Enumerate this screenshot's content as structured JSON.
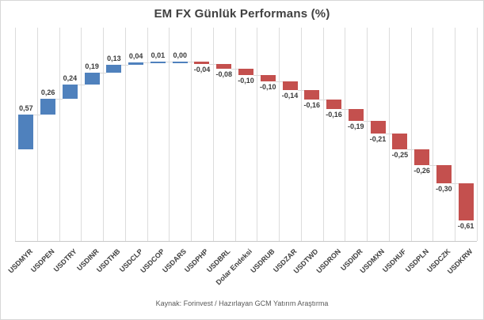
{
  "chart_data": {
    "type": "bar",
    "subtype": "waterfall",
    "title": "EM FX Günlük Performans (%)",
    "source_note": "Kaynak: Forinvest / Hazırlayan GCM Yatırım Araştırma",
    "categories": [
      "USDMYR",
      "USDPEN",
      "USDTRY",
      "USDINR",
      "USDTHB",
      "USDCLP",
      "USDCOP",
      "USDARS",
      "USDPHP",
      "USDBRL",
      "Dolar Endeksi",
      "USDRUB",
      "USDZAR",
      "USDTWD",
      "USDRON",
      "USDIDR",
      "USDMXN",
      "USDHUF",
      "USDPLN",
      "USDCZK",
      "USDKRW"
    ],
    "values": [
      0.57,
      0.26,
      0.24,
      0.19,
      0.13,
      0.04,
      0.01,
      0.0,
      -0.04,
      -0.08,
      -0.1,
      -0.1,
      -0.14,
      -0.16,
      -0.16,
      -0.19,
      -0.21,
      -0.25,
      -0.26,
      -0.3,
      -0.61
    ],
    "value_labels": [
      "0,57",
      "0,26",
      "0,24",
      "0,19",
      "0,13",
      "0,04",
      "0,01",
      "0,00",
      "-0,04",
      "-0,08",
      "-0,10",
      "-0,10",
      "-0,14",
      "-0,16",
      "-0,16",
      "-0,19",
      "-0,21",
      "-0,25",
      "-0,26",
      "-0,30",
      "-0,61"
    ],
    "xlabel": "",
    "ylabel": "",
    "axis": {
      "ymin": -1.5,
      "ymax": 2.0,
      "y_labels_visible": false,
      "gridlines": "vertical-category"
    },
    "legend": "none",
    "colors": {
      "positive": "#4f81bd",
      "negative": "#c4504e",
      "gridline": "#dcdcdc",
      "axis_line": "#c8c8c8",
      "connector": "#d9d9d9",
      "title": "#404040",
      "data_label": "#3a3a3a",
      "axis_label": "#404040",
      "note": "#595959",
      "border": "#d7d7d7",
      "background": "#ffffff"
    }
  }
}
